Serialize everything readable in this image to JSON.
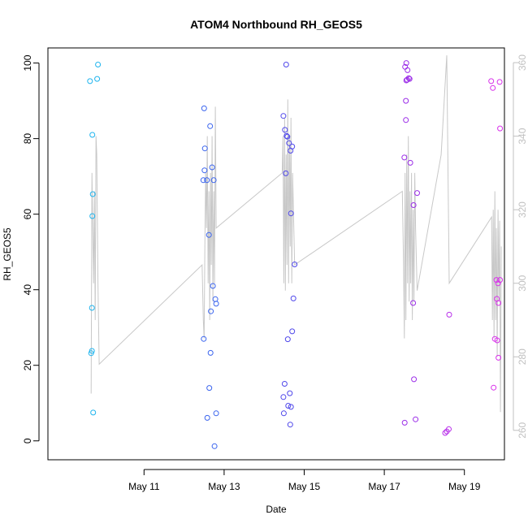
{
  "chart_data": {
    "type": "scatter",
    "title": "ATOM4 Northbound RH_GEOS5",
    "xlabel": "Date",
    "ylabel": "RH_GEOS5",
    "x_range_days": [
      8.6,
      20.0
    ],
    "ylim": [
      -5,
      104
    ],
    "y2lim": [
      252,
      364
    ],
    "x_ticks": [
      {
        "value": 11,
        "label": "May 11"
      },
      {
        "value": 13,
        "label": "May 13"
      },
      {
        "value": 15,
        "label": "May 15"
      },
      {
        "value": 17,
        "label": "May 17"
      },
      {
        "value": 19,
        "label": "May 19"
      }
    ],
    "y_ticks": [
      0,
      20,
      40,
      60,
      80,
      100
    ],
    "y2_ticks": [
      260,
      280,
      300,
      320,
      340,
      360
    ],
    "points": [
      {
        "x": 9.65,
        "y": 95.2,
        "color": "#1eb4ee"
      },
      {
        "x": 9.85,
        "y": 99.6,
        "color": "#1eb4ee"
      },
      {
        "x": 9.83,
        "y": 95.8,
        "color": "#1eb4ee"
      },
      {
        "x": 9.71,
        "y": 81.0,
        "color": "#1eb4ee"
      },
      {
        "x": 9.72,
        "y": 65.3,
        "color": "#1eb4ee"
      },
      {
        "x": 9.71,
        "y": 59.5,
        "color": "#1eb4ee"
      },
      {
        "x": 9.7,
        "y": 35.2,
        "color": "#1eb4ee"
      },
      {
        "x": 9.7,
        "y": 23.8,
        "color": "#1eb4ee"
      },
      {
        "x": 9.68,
        "y": 23.2,
        "color": "#1eb4ee"
      },
      {
        "x": 9.73,
        "y": 7.5,
        "color": "#1eb4ee"
      },
      {
        "x": 12.5,
        "y": 88.0,
        "color": "#3a64ee"
      },
      {
        "x": 12.65,
        "y": 83.3,
        "color": "#3a64ee"
      },
      {
        "x": 12.52,
        "y": 77.4,
        "color": "#3a64ee"
      },
      {
        "x": 12.7,
        "y": 72.4,
        "color": "#3a64ee"
      },
      {
        "x": 12.51,
        "y": 71.6,
        "color": "#3a64ee"
      },
      {
        "x": 12.48,
        "y": 69.0,
        "color": "#3a64ee"
      },
      {
        "x": 12.57,
        "y": 69.0,
        "color": "#3a64ee"
      },
      {
        "x": 12.74,
        "y": 69.0,
        "color": "#3a64ee"
      },
      {
        "x": 12.62,
        "y": 54.5,
        "color": "#3a64ee"
      },
      {
        "x": 12.72,
        "y": 41.0,
        "color": "#3a64ee"
      },
      {
        "x": 12.78,
        "y": 37.5,
        "color": "#3a64ee"
      },
      {
        "x": 12.8,
        "y": 36.3,
        "color": "#3a64ee"
      },
      {
        "x": 12.67,
        "y": 34.3,
        "color": "#3a64ee"
      },
      {
        "x": 12.49,
        "y": 27.0,
        "color": "#3a64ee"
      },
      {
        "x": 12.66,
        "y": 23.3,
        "color": "#3a64ee"
      },
      {
        "x": 12.63,
        "y": 14.0,
        "color": "#3a64ee"
      },
      {
        "x": 12.8,
        "y": 7.3,
        "color": "#3a64ee"
      },
      {
        "x": 12.58,
        "y": 6.1,
        "color": "#3a64ee"
      },
      {
        "x": 12.76,
        "y": -1.4,
        "color": "#3a64ee"
      },
      {
        "x": 14.55,
        "y": 99.6,
        "color": "#4f47ea"
      },
      {
        "x": 14.48,
        "y": 86.0,
        "color": "#4f47ea"
      },
      {
        "x": 14.52,
        "y": 82.3,
        "color": "#4f47ea"
      },
      {
        "x": 14.56,
        "y": 80.7,
        "color": "#4f47ea"
      },
      {
        "x": 14.58,
        "y": 80.5,
        "color": "#4f47ea"
      },
      {
        "x": 14.62,
        "y": 78.8,
        "color": "#4f47ea"
      },
      {
        "x": 14.7,
        "y": 77.9,
        "color": "#4f47ea"
      },
      {
        "x": 14.66,
        "y": 76.8,
        "color": "#4f47ea"
      },
      {
        "x": 14.54,
        "y": 70.8,
        "color": "#4f47ea"
      },
      {
        "x": 14.67,
        "y": 60.2,
        "color": "#4f47ea"
      },
      {
        "x": 14.76,
        "y": 46.7,
        "color": "#4f47ea"
      },
      {
        "x": 14.73,
        "y": 37.7,
        "color": "#4f47ea"
      },
      {
        "x": 14.7,
        "y": 29.0,
        "color": "#4f47ea"
      },
      {
        "x": 14.59,
        "y": 26.9,
        "color": "#4f47ea"
      },
      {
        "x": 14.51,
        "y": 15.1,
        "color": "#4f47ea"
      },
      {
        "x": 14.64,
        "y": 12.6,
        "color": "#4f47ea"
      },
      {
        "x": 14.48,
        "y": 11.6,
        "color": "#4f47ea"
      },
      {
        "x": 14.6,
        "y": 9.3,
        "color": "#4f47ea"
      },
      {
        "x": 14.67,
        "y": 9.0,
        "color": "#4f47ea"
      },
      {
        "x": 14.49,
        "y": 7.3,
        "color": "#4f47ea"
      },
      {
        "x": 14.65,
        "y": 4.3,
        "color": "#4f47ea"
      },
      {
        "x": 17.55,
        "y": 100.0,
        "color": "#9b2de8"
      },
      {
        "x": 17.52,
        "y": 99.0,
        "color": "#9b2de8"
      },
      {
        "x": 17.58,
        "y": 98.1,
        "color": "#9b2de8"
      },
      {
        "x": 17.61,
        "y": 96.0,
        "color": "#9b2de8"
      },
      {
        "x": 17.57,
        "y": 95.6,
        "color": "#9b2de8"
      },
      {
        "x": 17.55,
        "y": 95.4,
        "color": "#9b2de8"
      },
      {
        "x": 17.63,
        "y": 95.8,
        "color": "#9b2de8"
      },
      {
        "x": 17.54,
        "y": 90.0,
        "color": "#9b2de8"
      },
      {
        "x": 17.54,
        "y": 84.9,
        "color": "#9b2de8"
      },
      {
        "x": 17.5,
        "y": 75.0,
        "color": "#9b2de8"
      },
      {
        "x": 17.65,
        "y": 73.6,
        "color": "#9b2de8"
      },
      {
        "x": 17.82,
        "y": 65.6,
        "color": "#9b2de8"
      },
      {
        "x": 17.73,
        "y": 62.4,
        "color": "#9b2de8"
      },
      {
        "x": 17.72,
        "y": 36.5,
        "color": "#9b2de8"
      },
      {
        "x": 17.74,
        "y": 16.3,
        "color": "#9b2de8"
      },
      {
        "x": 17.78,
        "y": 5.7,
        "color": "#9b2de8"
      },
      {
        "x": 17.51,
        "y": 4.8,
        "color": "#9b2de8"
      },
      {
        "x": 18.62,
        "y": 33.4,
        "color": "#b82fea"
      },
      {
        "x": 18.52,
        "y": 2.1,
        "color": "#b82fea"
      },
      {
        "x": 18.56,
        "y": 2.5,
        "color": "#b82fea"
      },
      {
        "x": 18.61,
        "y": 3.1,
        "color": "#b82fea"
      },
      {
        "x": 19.67,
        "y": 95.2,
        "color": "#d830ea"
      },
      {
        "x": 19.88,
        "y": 95.0,
        "color": "#d830ea"
      },
      {
        "x": 19.71,
        "y": 93.4,
        "color": "#d830ea"
      },
      {
        "x": 19.89,
        "y": 82.7,
        "color": "#d830ea"
      },
      {
        "x": 19.8,
        "y": 42.6,
        "color": "#d830ea"
      },
      {
        "x": 19.89,
        "y": 42.6,
        "color": "#d830ea"
      },
      {
        "x": 19.84,
        "y": 41.7,
        "color": "#d830ea"
      },
      {
        "x": 19.81,
        "y": 37.6,
        "color": "#d830ea"
      },
      {
        "x": 19.85,
        "y": 36.5,
        "color": "#d830ea"
      },
      {
        "x": 19.76,
        "y": 27.0,
        "color": "#d830ea"
      },
      {
        "x": 19.82,
        "y": 26.6,
        "color": "#d830ea"
      },
      {
        "x": 19.85,
        "y": 22.0,
        "color": "#d830ea"
      },
      {
        "x": 19.73,
        "y": 14.1,
        "color": "#d830ea"
      }
    ],
    "line_series": {
      "color": "#c8c8c8",
      "axis": "right",
      "points": [
        [
          9.68,
          270
        ],
        [
          9.7,
          330
        ],
        [
          9.72,
          315
        ],
        [
          9.74,
          300
        ],
        [
          9.76,
          325
        ],
        [
          9.78,
          290
        ],
        [
          9.8,
          340
        ],
        [
          9.82,
          335
        ],
        [
          9.85,
          300
        ],
        [
          9.88,
          278
        ],
        [
          12.45,
          305
        ],
        [
          12.48,
          290
        ],
        [
          12.5,
          285
        ],
        [
          12.52,
          310
        ],
        [
          12.54,
          330
        ],
        [
          12.56,
          315
        ],
        [
          12.58,
          340
        ],
        [
          12.6,
          300
        ],
        [
          12.62,
          325
        ],
        [
          12.64,
          290
        ],
        [
          12.66,
          330
        ],
        [
          12.68,
          305
        ],
        [
          12.7,
          340
        ],
        [
          12.72,
          295
        ],
        [
          12.74,
          325
        ],
        [
          12.76,
          300
        ],
        [
          12.78,
          348
        ],
        [
          12.8,
          315
        ],
        [
          14.45,
          330
        ],
        [
          14.47,
          340
        ],
        [
          14.49,
          300
        ],
        [
          14.51,
          345
        ],
        [
          14.53,
          298
        ],
        [
          14.55,
          335
        ],
        [
          14.57,
          305
        ],
        [
          14.59,
          350
        ],
        [
          14.61,
          300
        ],
        [
          14.63,
          340
        ],
        [
          14.65,
          310
        ],
        [
          14.67,
          345
        ],
        [
          14.69,
          300
        ],
        [
          14.71,
          330
        ],
        [
          14.73,
          320
        ],
        [
          14.76,
          305
        ],
        [
          17.45,
          325
        ],
        [
          17.48,
          305
        ],
        [
          17.5,
          285
        ],
        [
          17.52,
          330
        ],
        [
          17.54,
          290
        ],
        [
          17.56,
          335
        ],
        [
          17.58,
          300
        ],
        [
          17.6,
          340
        ],
        [
          17.62,
          295
        ],
        [
          17.64,
          325
        ],
        [
          17.66,
          300
        ],
        [
          17.68,
          330
        ],
        [
          17.7,
          290
        ],
        [
          17.72,
          320
        ],
        [
          17.74,
          295
        ],
        [
          17.76,
          330
        ],
        [
          17.78,
          315
        ],
        [
          17.82,
          298
        ],
        [
          18.42,
          335
        ],
        [
          18.56,
          362
        ],
        [
          18.62,
          300
        ],
        [
          19.68,
          318
        ],
        [
          19.7,
          290
        ],
        [
          19.72,
          320
        ],
        [
          19.74,
          285
        ],
        [
          19.76,
          325
        ],
        [
          19.78,
          290
        ],
        [
          19.8,
          315
        ],
        [
          19.82,
          280
        ],
        [
          19.84,
          320
        ],
        [
          19.86,
          295
        ],
        [
          19.88,
          317
        ],
        [
          19.9,
          265
        ],
        [
          19.92,
          310
        ]
      ]
    }
  }
}
